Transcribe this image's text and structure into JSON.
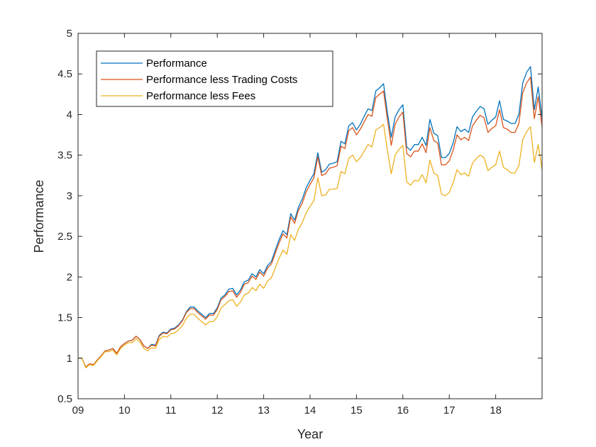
{
  "chart_data": {
    "type": "line",
    "title": "",
    "xlabel": "Year",
    "ylabel": "Performance",
    "xlim": [
      9,
      19
    ],
    "ylim": [
      0.5,
      5
    ],
    "x_ticks": [
      9,
      10,
      11,
      12,
      13,
      14,
      15,
      16,
      17,
      18
    ],
    "x_tick_labels": [
      "09",
      "10",
      "11",
      "12",
      "13",
      "14",
      "15",
      "16",
      "17",
      "18"
    ],
    "y_ticks": [
      0.5,
      1,
      1.5,
      2,
      2.5,
      3,
      3.5,
      4,
      4.5,
      5
    ],
    "y_tick_labels": [
      "0.5",
      "1",
      "1.5",
      "2",
      "2.5",
      "3",
      "3.5",
      "4",
      "4.5",
      "5"
    ],
    "grid": false,
    "legend_position": "top-left",
    "x": [
      9.0,
      9.083,
      9.167,
      9.25,
      9.333,
      9.417,
      9.5,
      9.583,
      9.667,
      9.75,
      9.833,
      9.917,
      10.0,
      10.083,
      10.167,
      10.25,
      10.333,
      10.417,
      10.5,
      10.583,
      10.667,
      10.75,
      10.833,
      10.917,
      11.0,
      11.083,
      11.167,
      11.25,
      11.333,
      11.417,
      11.5,
      11.583,
      11.667,
      11.75,
      11.833,
      11.917,
      12.0,
      12.083,
      12.167,
      12.25,
      12.333,
      12.417,
      12.5,
      12.583,
      12.667,
      12.75,
      12.833,
      12.917,
      13.0,
      13.083,
      13.167,
      13.25,
      13.333,
      13.417,
      13.5,
      13.583,
      13.667,
      13.75,
      13.833,
      13.917,
      14.0,
      14.083,
      14.167,
      14.25,
      14.333,
      14.417,
      14.5,
      14.583,
      14.667,
      14.75,
      14.833,
      14.917,
      15.0,
      15.083,
      15.167,
      15.25,
      15.333,
      15.417,
      15.5,
      15.583,
      15.667,
      15.75,
      15.833,
      15.917,
      16.0,
      16.083,
      16.167,
      16.25,
      16.333,
      16.417,
      16.5,
      16.583,
      16.667,
      16.75,
      16.833,
      16.917,
      17.0,
      17.083,
      17.167,
      17.25,
      17.333,
      17.417,
      17.5,
      17.583,
      17.667,
      17.75,
      17.833,
      17.917,
      18.0,
      18.083,
      18.167,
      18.25,
      18.333,
      18.417,
      18.5,
      18.583,
      18.667,
      18.75,
      18.833,
      18.917,
      19.0
    ],
    "series": [
      {
        "name": "Performance",
        "color": "#0072BD",
        "values": [
          1.0,
          1.0,
          0.89,
          0.93,
          0.92,
          0.98,
          1.03,
          1.09,
          1.1,
          1.12,
          1.06,
          1.14,
          1.18,
          1.21,
          1.22,
          1.27,
          1.23,
          1.15,
          1.12,
          1.17,
          1.16,
          1.28,
          1.32,
          1.31,
          1.36,
          1.37,
          1.41,
          1.47,
          1.57,
          1.63,
          1.63,
          1.58,
          1.54,
          1.5,
          1.55,
          1.55,
          1.62,
          1.74,
          1.78,
          1.85,
          1.86,
          1.78,
          1.84,
          1.94,
          1.96,
          2.04,
          2.0,
          2.09,
          2.04,
          2.14,
          2.19,
          2.33,
          2.46,
          2.57,
          2.52,
          2.78,
          2.7,
          2.86,
          2.96,
          3.1,
          3.19,
          3.27,
          3.53,
          3.29,
          3.32,
          3.39,
          3.4,
          3.42,
          3.67,
          3.64,
          3.86,
          3.9,
          3.81,
          3.88,
          3.98,
          4.07,
          4.05,
          4.29,
          4.33,
          4.38,
          4.02,
          3.72,
          3.97,
          4.06,
          4.12,
          3.6,
          3.56,
          3.63,
          3.63,
          3.72,
          3.62,
          3.94,
          3.77,
          3.74,
          3.47,
          3.47,
          3.52,
          3.65,
          3.85,
          3.79,
          3.82,
          3.78,
          3.97,
          4.04,
          4.1,
          4.07,
          3.88,
          3.93,
          3.97,
          4.17,
          3.94,
          3.92,
          3.89,
          3.89,
          4.0,
          4.39,
          4.52,
          4.59,
          4.06,
          4.34,
          3.95
        ]
      },
      {
        "name": "Performance less Trading Costs",
        "color": "#D95319",
        "values": [
          1.0,
          1.0,
          0.89,
          0.93,
          0.92,
          0.98,
          1.03,
          1.09,
          1.1,
          1.12,
          1.06,
          1.14,
          1.18,
          1.21,
          1.22,
          1.27,
          1.23,
          1.15,
          1.12,
          1.16,
          1.15,
          1.27,
          1.31,
          1.3,
          1.35,
          1.36,
          1.4,
          1.46,
          1.56,
          1.61,
          1.61,
          1.56,
          1.52,
          1.48,
          1.53,
          1.53,
          1.6,
          1.72,
          1.76,
          1.82,
          1.83,
          1.75,
          1.81,
          1.91,
          1.93,
          2.01,
          1.97,
          2.06,
          2.01,
          2.11,
          2.16,
          2.29,
          2.42,
          2.53,
          2.48,
          2.74,
          2.66,
          2.82,
          2.91,
          3.05,
          3.14,
          3.22,
          3.48,
          3.25,
          3.27,
          3.34,
          3.35,
          3.37,
          3.61,
          3.58,
          3.8,
          3.84,
          3.75,
          3.82,
          3.91,
          4.0,
          3.98,
          4.21,
          4.25,
          4.29,
          3.94,
          3.62,
          3.88,
          3.97,
          4.03,
          3.52,
          3.48,
          3.55,
          3.55,
          3.64,
          3.53,
          3.84,
          3.68,
          3.65,
          3.38,
          3.38,
          3.43,
          3.56,
          3.75,
          3.69,
          3.72,
          3.68,
          3.86,
          3.93,
          3.99,
          3.96,
          3.78,
          3.83,
          3.86,
          4.06,
          3.84,
          3.82,
          3.78,
          3.78,
          3.89,
          4.27,
          4.39,
          4.46,
          3.95,
          4.22,
          3.85
        ]
      },
      {
        "name": "Performance less Fees",
        "color": "#EDB120",
        "values": [
          1.0,
          1.0,
          0.88,
          0.92,
          0.91,
          0.97,
          1.02,
          1.08,
          1.08,
          1.1,
          1.04,
          1.12,
          1.16,
          1.19,
          1.19,
          1.24,
          1.2,
          1.12,
          1.09,
          1.13,
          1.12,
          1.23,
          1.27,
          1.26,
          1.3,
          1.31,
          1.35,
          1.4,
          1.49,
          1.54,
          1.54,
          1.49,
          1.45,
          1.41,
          1.45,
          1.45,
          1.51,
          1.62,
          1.66,
          1.71,
          1.72,
          1.64,
          1.69,
          1.78,
          1.8,
          1.87,
          1.83,
          1.91,
          1.86,
          1.95,
          1.99,
          2.11,
          2.23,
          2.33,
          2.28,
          2.52,
          2.45,
          2.59,
          2.67,
          2.79,
          2.87,
          2.94,
          3.22,
          3.0,
          3.01,
          3.08,
          3.08,
          3.09,
          3.3,
          3.27,
          3.46,
          3.5,
          3.42,
          3.47,
          3.55,
          3.63,
          3.6,
          3.81,
          3.84,
          3.88,
          3.56,
          3.27,
          3.5,
          3.57,
          3.62,
          3.17,
          3.13,
          3.19,
          3.18,
          3.26,
          3.16,
          3.44,
          3.28,
          3.25,
          3.02,
          3.0,
          3.04,
          3.16,
          3.32,
          3.26,
          3.28,
          3.24,
          3.4,
          3.46,
          3.5,
          3.47,
          3.31,
          3.35,
          3.38,
          3.55,
          3.35,
          3.32,
          3.28,
          3.28,
          3.37,
          3.69,
          3.79,
          3.85,
          3.41,
          3.63,
          3.32
        ]
      }
    ]
  }
}
